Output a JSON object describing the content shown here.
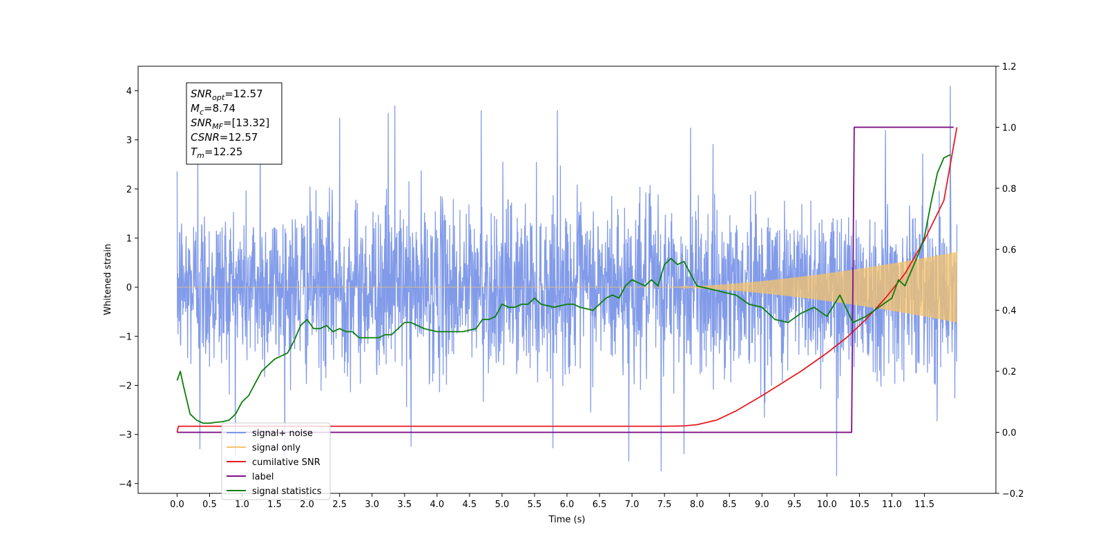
{
  "chart_data": {
    "type": "line",
    "title": "",
    "xlabel": "Time (s)",
    "ylabel": "Whitened strain",
    "y2label": "",
    "xlim": [
      -0.6,
      12.6
    ],
    "ylim": [
      -4.2,
      4.5
    ],
    "y2lim": [
      -0.2,
      1.2
    ],
    "xticks": [
      0.0,
      0.5,
      1.0,
      1.5,
      2.0,
      2.5,
      3.0,
      3.5,
      4.0,
      4.5,
      5.0,
      5.5,
      6.0,
      6.5,
      7.0,
      7.5,
      8.0,
      8.5,
      9.0,
      9.5,
      10.0,
      10.5,
      11.0,
      11.5
    ],
    "yticks": [
      4,
      3,
      2,
      1,
      0,
      -1,
      -2,
      -3,
      -4
    ],
    "y2ticks": [
      1.2,
      1.0,
      0.8,
      0.6,
      0.4,
      0.2,
      0.0,
      -0.2
    ],
    "grid": false,
    "legend_position": "lower-left",
    "stats_box": [
      {
        "base": "SNR",
        "sub": "opt",
        "value": "=12.57"
      },
      {
        "base": "M",
        "sub": "c",
        "value": "=8.74"
      },
      {
        "base": "SNR",
        "sub": "MF",
        "value": "=[13.32]"
      },
      {
        "base": "CSNR",
        "sub": "",
        "value": "=12.57"
      },
      {
        "base": "T",
        "sub": "m",
        "value": "=12.25"
      }
    ],
    "series": [
      {
        "name": "signal+ noise",
        "color": "#7b96e8",
        "axis": "left",
        "kind": "noise",
        "noise_sigma": 0.85,
        "duration": 12.0,
        "spikes": [
          [
            0.32,
            3.05
          ],
          [
            1.28,
            3.3
          ],
          [
            2.5,
            3.45
          ],
          [
            3.25,
            3.55
          ],
          [
            3.35,
            3.7
          ],
          [
            4.68,
            3.6
          ],
          [
            5.85,
            3.6
          ],
          [
            7.9,
            3.25
          ],
          [
            10.9,
            3.2
          ],
          [
            11.9,
            4.1
          ],
          [
            0.35,
            -3.3
          ],
          [
            3.6,
            -3.25
          ],
          [
            6.95,
            -3.55
          ],
          [
            7.45,
            -3.75
          ],
          [
            7.8,
            -3.4
          ],
          [
            10.15,
            -3.85
          ]
        ]
      },
      {
        "name": "signal only",
        "color": "#f5c36a",
        "axis": "left",
        "kind": "chirp",
        "t_start": 7.5,
        "t_end": 12.0,
        "amp_end": 0.72
      },
      {
        "name": "cumilative SNR",
        "color": "#e8191e",
        "axis": "right",
        "kind": "line",
        "x": [
          0.0,
          0.02,
          7.5,
          7.8,
          8.0,
          8.3,
          8.6,
          9.0,
          9.3,
          9.6,
          10.0,
          10.3,
          10.6,
          10.9,
          11.2,
          11.5,
          11.8,
          12.0
        ],
        "y": [
          0.0,
          0.02,
          0.02,
          0.021,
          0.025,
          0.04,
          0.07,
          0.12,
          0.16,
          0.2,
          0.26,
          0.31,
          0.37,
          0.44,
          0.52,
          0.63,
          0.76,
          1.0
        ]
      },
      {
        "name": "label",
        "color": "#7d0f86",
        "axis": "right",
        "kind": "line",
        "x": [
          0.0,
          10.38,
          10.42,
          11.95
        ],
        "y": [
          0.0,
          0.0,
          1.0,
          1.0
        ]
      },
      {
        "name": "signal statistics",
        "color": "#0a7d0a",
        "axis": "right",
        "kind": "line",
        "x": [
          0.0,
          0.05,
          0.1,
          0.2,
          0.3,
          0.4,
          0.5,
          0.6,
          0.7,
          0.8,
          0.9,
          1.0,
          1.1,
          1.2,
          1.3,
          1.4,
          1.5,
          1.6,
          1.7,
          1.8,
          1.9,
          2.0,
          2.1,
          2.2,
          2.3,
          2.4,
          2.5,
          2.6,
          2.7,
          2.8,
          2.9,
          3.0,
          3.1,
          3.2,
          3.3,
          3.4,
          3.5,
          3.6,
          3.8,
          4.0,
          4.2,
          4.4,
          4.6,
          4.7,
          4.8,
          4.9,
          5.0,
          5.1,
          5.2,
          5.3,
          5.4,
          5.5,
          5.6,
          5.8,
          6.0,
          6.1,
          6.2,
          6.4,
          6.5,
          6.6,
          6.7,
          6.8,
          6.9,
          7.0,
          7.1,
          7.2,
          7.3,
          7.4,
          7.5,
          7.6,
          7.7,
          7.8,
          7.9,
          8.0,
          8.2,
          8.4,
          8.6,
          8.8,
          9.0,
          9.2,
          9.4,
          9.6,
          9.8,
          10.0,
          10.2,
          10.4,
          10.6,
          10.8,
          11.0,
          11.1,
          11.2,
          11.3,
          11.4,
          11.5,
          11.6,
          11.7,
          11.8,
          11.9
        ],
        "y": [
          0.17,
          0.2,
          0.15,
          0.06,
          0.04,
          0.03,
          0.03,
          0.033,
          0.035,
          0.04,
          0.06,
          0.1,
          0.12,
          0.16,
          0.2,
          0.22,
          0.24,
          0.25,
          0.26,
          0.3,
          0.35,
          0.37,
          0.34,
          0.34,
          0.35,
          0.33,
          0.34,
          0.33,
          0.33,
          0.31,
          0.31,
          0.31,
          0.31,
          0.32,
          0.32,
          0.34,
          0.36,
          0.36,
          0.34,
          0.33,
          0.33,
          0.33,
          0.34,
          0.37,
          0.37,
          0.38,
          0.42,
          0.41,
          0.41,
          0.42,
          0.42,
          0.44,
          0.42,
          0.41,
          0.42,
          0.42,
          0.41,
          0.4,
          0.42,
          0.44,
          0.45,
          0.44,
          0.48,
          0.5,
          0.49,
          0.48,
          0.5,
          0.48,
          0.55,
          0.57,
          0.55,
          0.56,
          0.52,
          0.48,
          0.47,
          0.46,
          0.45,
          0.42,
          0.41,
          0.37,
          0.36,
          0.39,
          0.41,
          0.38,
          0.45,
          0.36,
          0.38,
          0.41,
          0.44,
          0.5,
          0.48,
          0.53,
          0.58,
          0.64,
          0.75,
          0.85,
          0.9,
          0.91
        ]
      }
    ]
  }
}
